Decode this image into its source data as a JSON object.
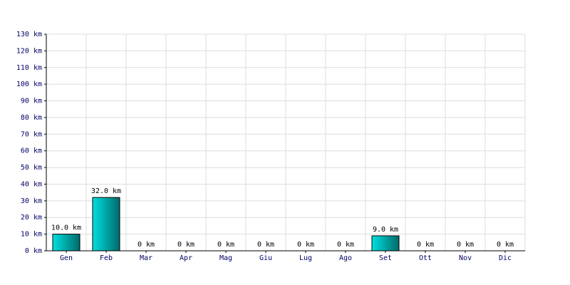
{
  "chart_data": {
    "type": "bar",
    "categories": [
      "Gen",
      "Feb",
      "Mar",
      "Apr",
      "Mag",
      "Giu",
      "Lug",
      "Ago",
      "Set",
      "Ott",
      "Nov",
      "Dic"
    ],
    "values": [
      10,
      32,
      0,
      0,
      0,
      0,
      0,
      0,
      9,
      0,
      0,
      0
    ],
    "value_labels": [
      "10.0 km",
      "32.0 km",
      "0 km",
      "0 km",
      "0 km",
      "0 km",
      "0 km",
      "0 km",
      "9.0 km",
      "0 km",
      "0 km",
      "0 km"
    ],
    "color": "#00e0e0",
    "ylim": [
      0,
      130
    ],
    "yticks": [
      {
        "value": 0,
        "label": "0 km"
      },
      {
        "value": 10,
        "label": "10 km"
      },
      {
        "value": 20,
        "label": "20 km"
      },
      {
        "value": 30,
        "label": "30 km"
      },
      {
        "value": 40,
        "label": "40 km"
      },
      {
        "value": 50,
        "label": "50 km"
      },
      {
        "value": 60,
        "label": "60 km"
      },
      {
        "value": 70,
        "label": "70 km"
      },
      {
        "value": 80,
        "label": "80 km"
      },
      {
        "value": 90,
        "label": "90 km"
      },
      {
        "value": 100,
        "label": "100 km"
      },
      {
        "value": 110,
        "label": "110 km"
      },
      {
        "value": 120,
        "label": "120 km"
      },
      {
        "value": 130,
        "label": "130 km"
      }
    ],
    "grid": true
  }
}
